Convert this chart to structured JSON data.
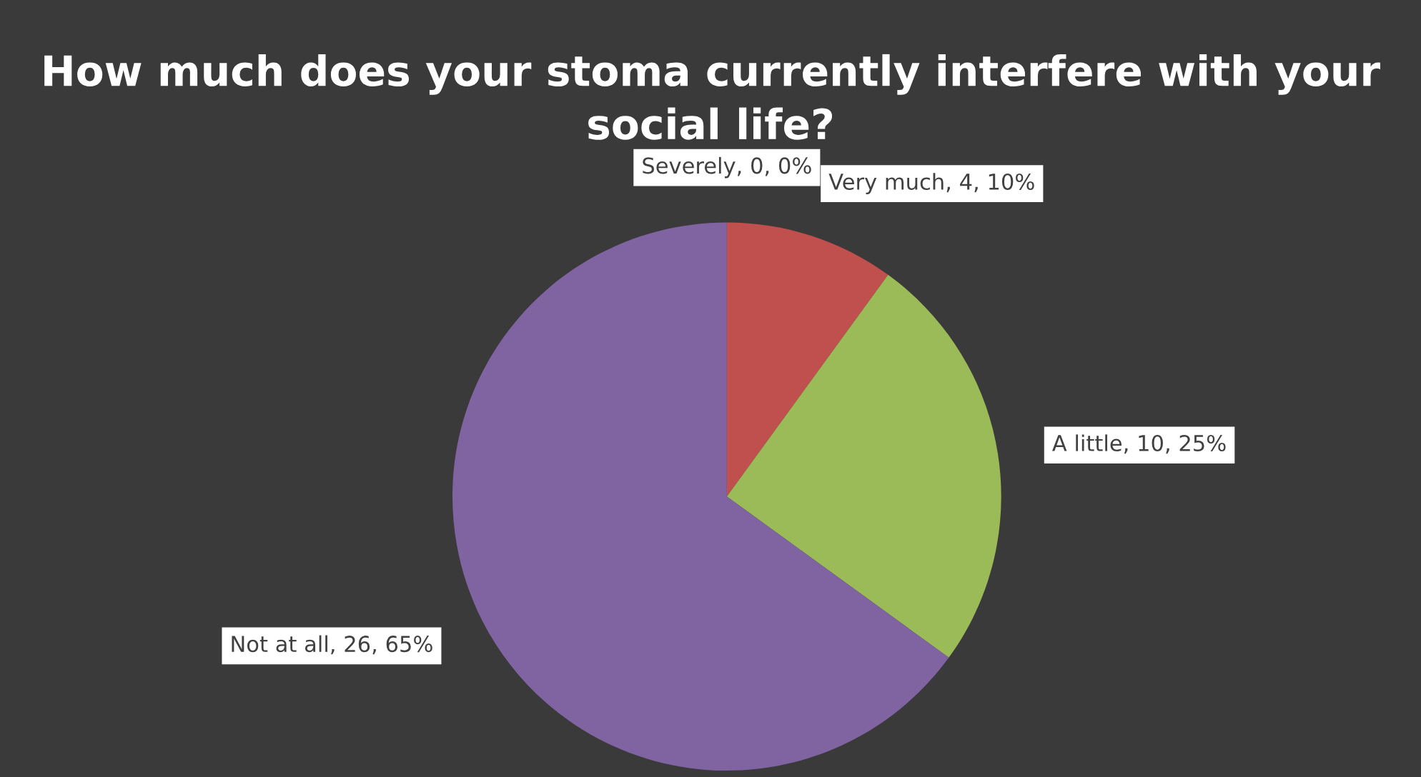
{
  "chart_data": {
    "type": "pie",
    "title": "How much does your stoma currently interfere with your social life?",
    "categories": [
      "Severely",
      "Very much",
      "A little",
      "Not at all"
    ],
    "values": [
      0,
      10,
      25,
      65
    ],
    "colors": [
      "#4f81bd",
      "#c0504d",
      "#9bbb59",
      "#8064a2"
    ],
    "value_labels": [
      ", 0, 0%",
      ", 4, 10%",
      ", 10, 25%",
      ", 26, 65%"
    ]
  }
}
